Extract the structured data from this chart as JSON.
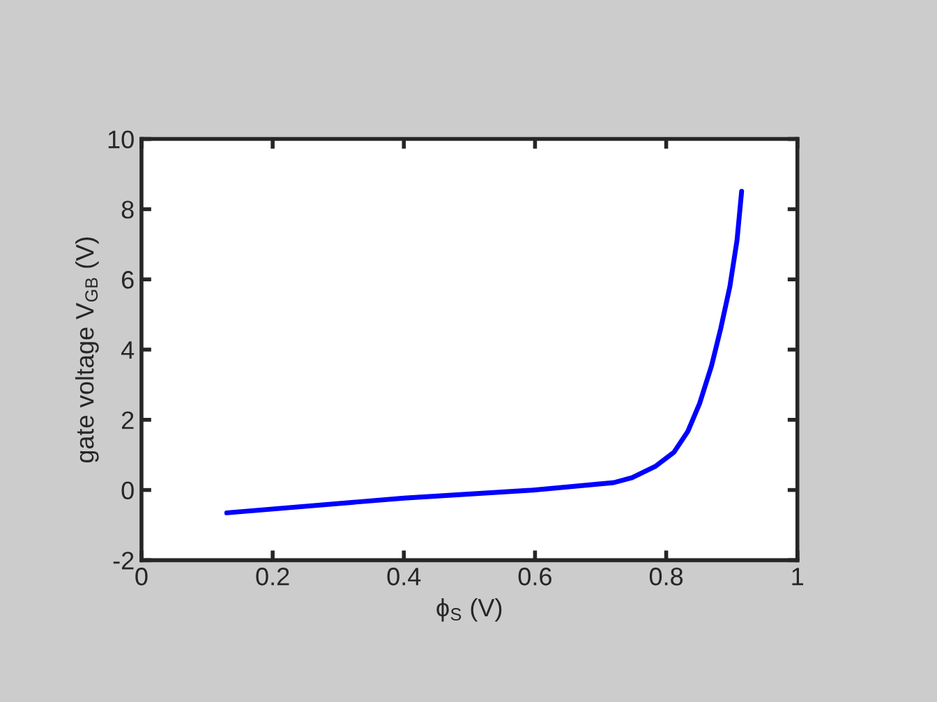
{
  "chart_data": {
    "type": "line",
    "xlabel": "ϕ$_{S}$ (V)",
    "ylabel": "gate voltage V$_{GB}$ (V)",
    "xlim": [
      0,
      1
    ],
    "ylim": [
      -2,
      10
    ],
    "xticks": [
      0,
      0.2,
      0.4,
      0.6,
      0.8,
      1
    ],
    "yticks": [
      -2,
      0,
      2,
      4,
      6,
      8,
      10
    ],
    "grid": false,
    "marker": "none",
    "line_style": "solid",
    "series": [
      {
        "color": "#0000ff",
        "x": [
          0.13,
          0.4,
          0.592,
          0.663,
          0.72,
          0.748,
          0.784,
          0.812,
          0.833,
          0.851,
          0.869,
          0.883,
          0.897,
          0.908,
          0.915
        ],
        "values": [
          -0.65,
          -0.23,
          -0.01,
          0.11,
          0.21,
          0.35,
          0.68,
          1.08,
          1.67,
          2.47,
          3.53,
          4.59,
          5.79,
          7.12,
          8.51
        ]
      }
    ]
  }
}
